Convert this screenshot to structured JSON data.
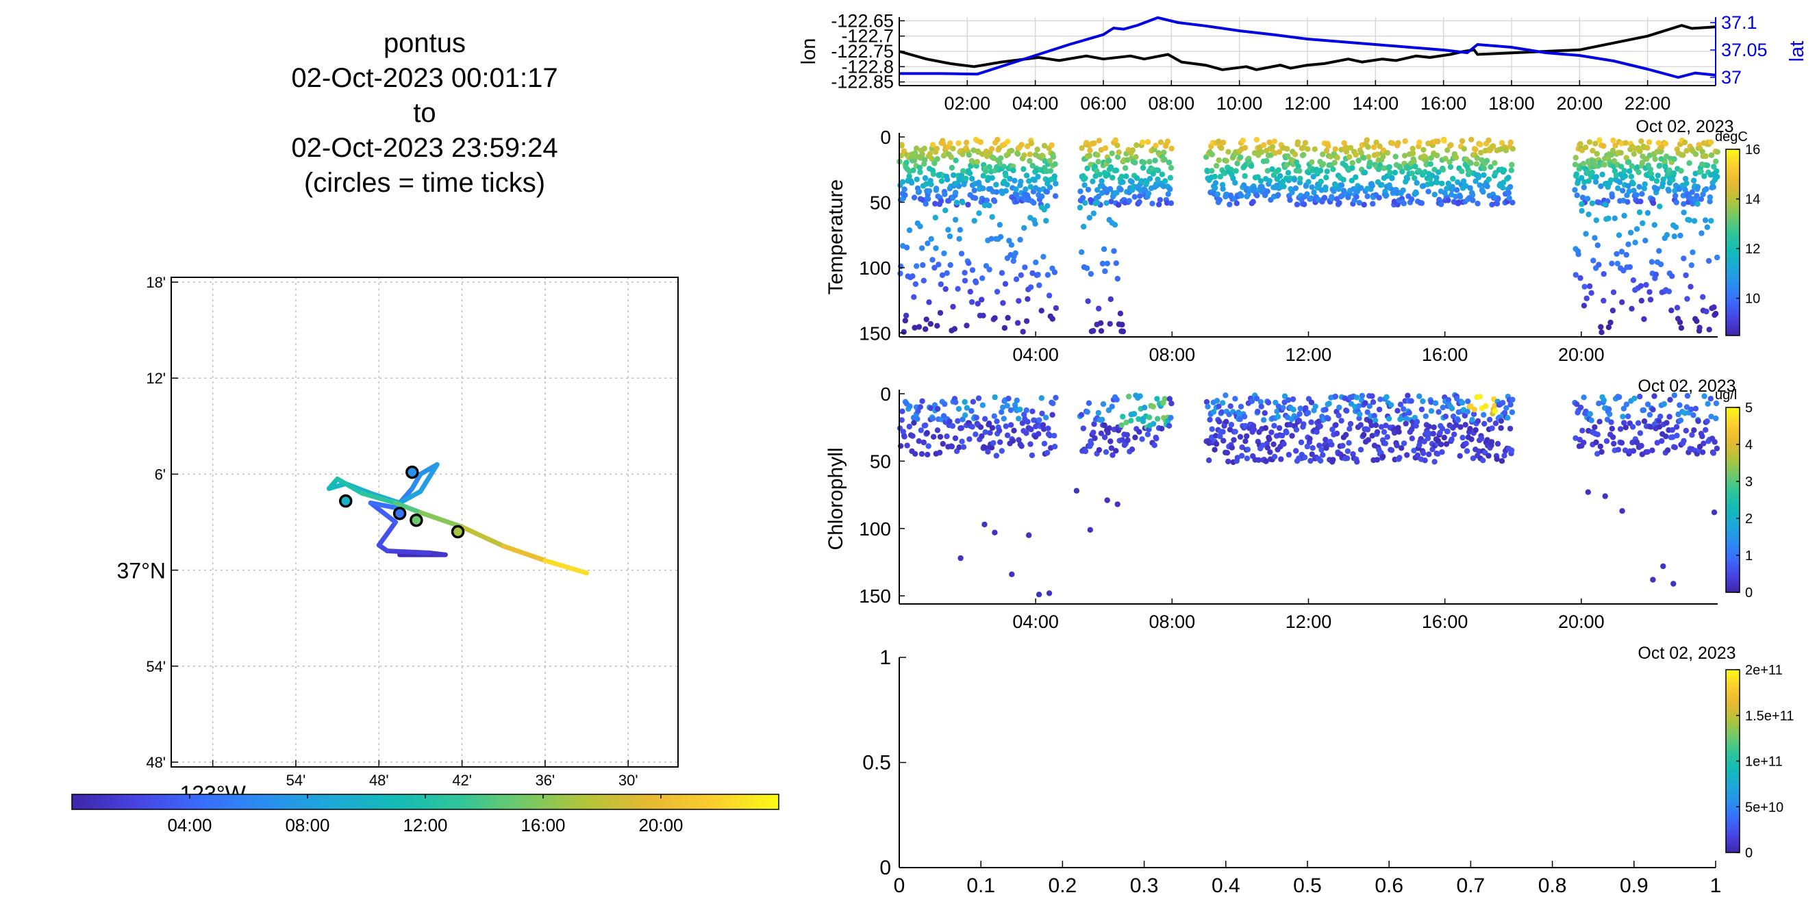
{
  "header": {
    "platform": "pontus",
    "start": "02-Oct-2023 00:01:17",
    "to_word": "to",
    "end": "02-Oct-2023 23:59:24",
    "note": "(circles = time ticks)"
  },
  "palette": [
    "#3e26a8",
    "#4743e2",
    "#3a6cfd",
    "#2a8ef0",
    "#1ca8d9",
    "#13bbb7",
    "#2ec59a",
    "#71c969",
    "#b4c43a",
    "#e8b932",
    "#fcce2e",
    "#f9fb15"
  ],
  "chart_data": [
    {
      "id": "map",
      "type": "line",
      "title": "",
      "lat_ticks": [
        "18'",
        "12'",
        "6'",
        "37°N",
        "54'",
        "48'"
      ],
      "lat_values": [
        37.3,
        37.2,
        37.1,
        37.0,
        36.9,
        36.8
      ],
      "lon_ticks": [
        "123°W",
        "54'",
        "48'",
        "42'",
        "36'",
        "30'"
      ],
      "lon_values": [
        -123.0,
        -122.9,
        -122.8,
        -122.7,
        -122.6,
        -122.5
      ],
      "xlim": [
        -123.05,
        -122.44
      ],
      "ylim": [
        36.795,
        37.305
      ],
      "grid": true,
      "track": [
        {
          "t": 0.0,
          "lon": -122.775,
          "lat": 37.016
        },
        {
          "t": 1.0,
          "lon": -122.72,
          "lat": 37.016
        },
        {
          "t": 1.5,
          "lon": -122.74,
          "lat": 37.018
        },
        {
          "t": 2.2,
          "lon": -122.79,
          "lat": 37.02
        },
        {
          "t": 2.6,
          "lon": -122.8,
          "lat": 37.026
        },
        {
          "t": 3.2,
          "lon": -122.78,
          "lat": 37.05
        },
        {
          "t": 4.0,
          "lon": -122.81,
          "lat": 37.07
        },
        {
          "t": 5.0,
          "lon": -122.78,
          "lat": 37.065
        },
        {
          "t": 6.0,
          "lon": -122.76,
          "lat": 37.085
        },
        {
          "t": 6.8,
          "lon": -122.75,
          "lat": 37.1
        },
        {
          "t": 7.2,
          "lon": -122.73,
          "lat": 37.11
        },
        {
          "t": 8.0,
          "lon": -122.75,
          "lat": 37.082
        },
        {
          "t": 8.6,
          "lon": -122.775,
          "lat": 37.07
        },
        {
          "t": 9.2,
          "lon": -122.81,
          "lat": 37.08
        },
        {
          "t": 9.8,
          "lon": -122.84,
          "lat": 37.09
        },
        {
          "t": 10.6,
          "lon": -122.86,
          "lat": 37.085
        },
        {
          "t": 11.4,
          "lon": -122.85,
          "lat": 37.095
        },
        {
          "t": 12.2,
          "lon": -122.82,
          "lat": 37.08
        },
        {
          "t": 13.5,
          "lon": -122.78,
          "lat": 37.07
        },
        {
          "t": 15.0,
          "lon": -122.75,
          "lat": 37.06
        },
        {
          "t": 17.0,
          "lon": -122.7,
          "lat": 37.045
        },
        {
          "t": 19.0,
          "lon": -122.65,
          "lat": 37.025
        },
        {
          "t": 21.0,
          "lon": -122.6,
          "lat": 37.01
        },
        {
          "t": 24.0,
          "lon": -122.55,
          "lat": 36.997
        }
      ],
      "tick_circles": [
        {
          "lon": -122.76,
          "lat": 37.102
        },
        {
          "lon": -122.84,
          "lat": 37.072
        },
        {
          "lon": -122.775,
          "lat": 37.059
        },
        {
          "lon": -122.755,
          "lat": 37.052
        },
        {
          "lon": -122.705,
          "lat": 37.04
        }
      ],
      "colorbar_ticks": [
        "04:00",
        "08:00",
        "12:00",
        "16:00",
        "20:00"
      ],
      "colorbar_values": [
        4,
        8,
        12,
        16,
        20
      ],
      "colorbar_range": [
        0,
        24
      ]
    },
    {
      "id": "lonlat",
      "type": "line",
      "title": "",
      "ylabel": "lon",
      "ylabel_right": "lat",
      "date_label": "Oct 02, 2023",
      "xlim": [
        0,
        24
      ],
      "x_ticks": [
        "02:00",
        "04:00",
        "06:00",
        "08:00",
        "10:00",
        "12:00",
        "14:00",
        "16:00",
        "18:00",
        "20:00",
        "22:00"
      ],
      "x_tick_values": [
        2,
        4,
        6,
        8,
        10,
        12,
        14,
        16,
        18,
        20,
        22
      ],
      "y_ticks": [
        "-122.65",
        "-122.7",
        "-122.75",
        "-122.8",
        "-122.85"
      ],
      "y_tick_values": [
        -122.65,
        -122.7,
        -122.75,
        -122.8,
        -122.85
      ],
      "ylim": [
        -122.862,
        -122.638
      ],
      "y2_ticks": [
        "37.1",
        "37.05",
        "37"
      ],
      "y2_tick_values": [
        37.1,
        37.05,
        37.0
      ],
      "y2lim": [
        36.985,
        37.11
      ],
      "grid": true,
      "series": [
        {
          "name": "lon",
          "color": "#000000",
          "axis": "left",
          "x": [
            0,
            0.8,
            1.5,
            2.2,
            3,
            4.1,
            4.7,
            5.5,
            6,
            6.8,
            7.2,
            7.9,
            8.3,
            9,
            9.5,
            10.2,
            10.5,
            11.2,
            11.5,
            12,
            12.5,
            13.2,
            13.6,
            14.2,
            14.6,
            15.2,
            15.6,
            16.2,
            16.6,
            16.9,
            17,
            18,
            20,
            22,
            23,
            23.3,
            24
          ],
          "y": [
            -122.75,
            -122.775,
            -122.79,
            -122.8,
            -122.785,
            -122.77,
            -122.78,
            -122.765,
            -122.775,
            -122.765,
            -122.775,
            -122.76,
            -122.785,
            -122.795,
            -122.81,
            -122.8,
            -122.81,
            -122.795,
            -122.805,
            -122.795,
            -122.79,
            -122.775,
            -122.785,
            -122.775,
            -122.78,
            -122.765,
            -122.77,
            -122.76,
            -122.75,
            -122.745,
            -122.76,
            -122.755,
            -122.745,
            -122.7,
            -122.665,
            -122.675,
            -122.67
          ]
        },
        {
          "name": "lat",
          "color": "#0000e0",
          "axis": "right",
          "x": [
            0,
            1.2,
            2.3,
            3,
            4,
            5,
            6,
            6.3,
            6.6,
            7,
            7.6,
            8.2,
            9,
            10,
            11,
            12,
            13,
            14,
            15,
            16,
            16.7,
            17,
            18,
            19,
            20,
            21,
            22,
            22.9,
            23.4,
            24
          ],
          "y": [
            37.007,
            37.007,
            37.006,
            37.02,
            37.04,
            37.06,
            37.078,
            37.09,
            37.088,
            37.095,
            37.109,
            37.1,
            37.094,
            37.085,
            37.078,
            37.07,
            37.065,
            37.06,
            37.055,
            37.05,
            37.045,
            37.06,
            37.055,
            37.045,
            37.04,
            37.03,
            37.015,
            37.0,
            37.008,
            37.004
          ]
        }
      ]
    },
    {
      "id": "temperature",
      "type": "scatter",
      "title": "",
      "ylabel": "Temperature",
      "date_label": "Oct 02, 2023",
      "colorbar_label": "degC",
      "colorbar_ticks": [
        "16",
        "14",
        "12",
        "10"
      ],
      "colorbar_values": [
        16,
        14,
        12,
        10
      ],
      "color_range": [
        8.5,
        16
      ],
      "xlim": [
        0,
        24
      ],
      "x_ticks": [
        "04:00",
        "08:00",
        "12:00",
        "16:00",
        "20:00"
      ],
      "x_tick_values": [
        4,
        8,
        12,
        16,
        20
      ],
      "y_ticks": [
        "0",
        "50",
        "100",
        "150"
      ],
      "y_tick_values": [
        0,
        50,
        100,
        150
      ],
      "ylim": [
        0,
        153
      ],
      "y_reversed": true,
      "deep_segments": [
        [
          0,
          4.6
        ],
        [
          5.3,
          6.6
        ],
        [
          19.8,
          24
        ]
      ],
      "shallow_segments": [
        [
          0,
          4.6
        ],
        [
          5.3,
          8
        ],
        [
          9,
          18
        ],
        [
          19.8,
          24
        ]
      ],
      "shallow_depth": 50,
      "deep_depth": 150
    },
    {
      "id": "chlorophyll",
      "type": "scatter",
      "title": "",
      "ylabel": "Chlorophyll",
      "date_label": "Oct 02, 2023",
      "colorbar_label": "ug/l",
      "colorbar_ticks": [
        "5",
        "4",
        "3",
        "2",
        "1",
        "0"
      ],
      "colorbar_values": [
        5,
        4,
        3,
        2,
        1,
        0
      ],
      "color_range": [
        0,
        5
      ],
      "xlim": [
        0,
        24
      ],
      "x_ticks": [
        "04:00",
        "08:00",
        "12:00",
        "16:00",
        "20:00"
      ],
      "x_tick_values": [
        4,
        8,
        12,
        16,
        20
      ],
      "y_ticks": [
        "0",
        "50",
        "100",
        "150"
      ],
      "y_tick_values": [
        0,
        50,
        100,
        150
      ],
      "ylim": [
        0,
        156
      ],
      "y_reversed": true,
      "segments": [
        [
          0,
          4.6
        ],
        [
          5.3,
          8
        ],
        [
          9,
          18
        ],
        [
          19.8,
          24
        ]
      ],
      "outliers": [
        {
          "x": 1.8,
          "y": 122
        },
        {
          "x": 2.5,
          "y": 97
        },
        {
          "x": 2.8,
          "y": 103
        },
        {
          "x": 3.3,
          "y": 134
        },
        {
          "x": 3.8,
          "y": 105
        },
        {
          "x": 4.1,
          "y": 149
        },
        {
          "x": 4.4,
          "y": 148
        },
        {
          "x": 5.2,
          "y": 72
        },
        {
          "x": 5.6,
          "y": 101
        },
        {
          "x": 6.1,
          "y": 79
        },
        {
          "x": 6.4,
          "y": 82
        },
        {
          "x": 20.2,
          "y": 73
        },
        {
          "x": 20.7,
          "y": 76
        },
        {
          "x": 21.2,
          "y": 87
        },
        {
          "x": 22.1,
          "y": 138
        },
        {
          "x": 22.4,
          "y": 128
        },
        {
          "x": 22.7,
          "y": 141
        },
        {
          "x": 23.9,
          "y": 88
        }
      ]
    },
    {
      "id": "empty",
      "type": "scatter",
      "title": "",
      "xlim": [
        0,
        1
      ],
      "ylim": [
        0,
        1
      ],
      "x_ticks": [
        "0",
        "0.1",
        "0.2",
        "0.3",
        "0.4",
        "0.5",
        "0.6",
        "0.7",
        "0.8",
        "0.9",
        "1"
      ],
      "x_tick_values": [
        0,
        0.1,
        0.2,
        0.3,
        0.4,
        0.5,
        0.6,
        0.7,
        0.8,
        0.9,
        1
      ],
      "y_ticks": [
        "1",
        "0.5",
        "0"
      ],
      "y_tick_values": [
        1,
        0.5,
        0
      ],
      "colorbar_ticks": [
        "2e+11",
        "1.5e+11",
        "1e+11",
        "5e+10",
        "0"
      ],
      "colorbar_values": [
        200000000000.0,
        150000000000.0,
        100000000000.0,
        50000000000.0,
        0
      ],
      "color_range": [
        0,
        200000000000.0
      ]
    }
  ]
}
